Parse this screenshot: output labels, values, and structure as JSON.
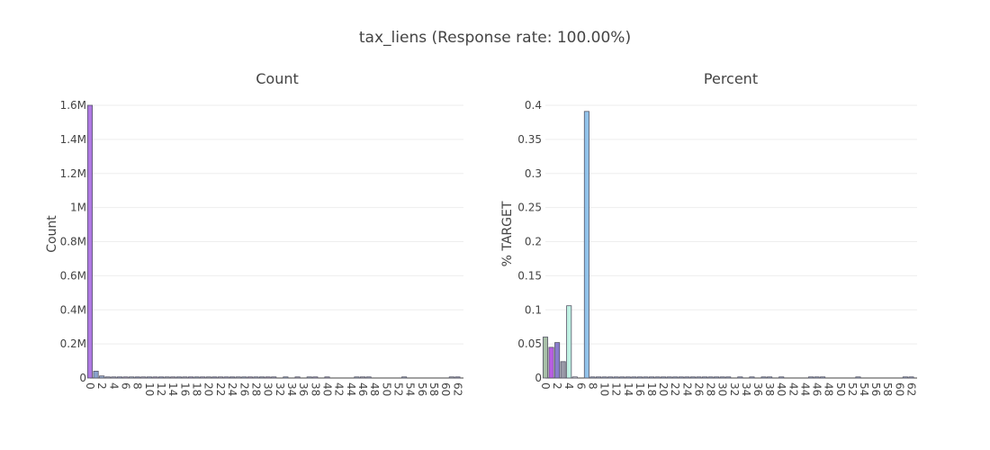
{
  "title": "tax_liens (Response rate: 100.00%)",
  "chart_data": [
    {
      "type": "bar",
      "title": "Count",
      "xlabel": "",
      "ylabel": "Count",
      "ylim": [
        0,
        1600000
      ],
      "yticks": [
        0,
        200000,
        400000,
        600000,
        800000,
        1000000,
        1200000,
        1400000,
        1600000
      ],
      "ytick_labels": [
        "0",
        "0.2M",
        "0.4M",
        "0.6M",
        "0.8M",
        "1M",
        "1.2M",
        "1.4M",
        "1.6M"
      ],
      "xlim": [
        0,
        63
      ],
      "xticks": [
        0,
        2,
        4,
        6,
        8,
        10,
        12,
        14,
        16,
        18,
        20,
        22,
        24,
        26,
        28,
        30,
        32,
        34,
        36,
        38,
        40,
        42,
        44,
        46,
        48,
        50,
        52,
        54,
        56,
        58,
        60,
        62
      ],
      "grid": true,
      "x": [
        0,
        1,
        2,
        3,
        4,
        5,
        6,
        7,
        8,
        9,
        10,
        11,
        12,
        13,
        14,
        15,
        16,
        17,
        18,
        19,
        20,
        21,
        22,
        23,
        24,
        25,
        26,
        27,
        28,
        29,
        30,
        31,
        33,
        35,
        37,
        38,
        40,
        45,
        46,
        47,
        53,
        61,
        62
      ],
      "values": [
        1600000,
        40000,
        12000,
        5500,
        3000,
        1800,
        1100,
        700,
        500,
        350,
        250,
        200,
        150,
        120,
        100,
        80,
        70,
        60,
        50,
        45,
        40,
        35,
        30,
        28,
        25,
        22,
        20,
        18,
        15,
        14,
        12,
        10,
        9,
        8,
        7,
        6,
        5,
        4,
        4,
        3,
        2,
        2,
        1
      ],
      "colors": [
        "#a66ae0",
        "#7d98c8",
        "#8fa3c4",
        "#a6b0c0",
        "#b0b8c8",
        "#9ea8d0",
        "#c0a8c8",
        "#a8c0d0",
        "#90a0c0",
        "#b8b8c8",
        "#a0b0c8",
        "#b0a0c0",
        "#98a8c8",
        "#a8b8c0",
        "#b8a8b8",
        "#a0a8c0",
        "#b0b0c0",
        "#a8a0c8",
        "#98b0c0",
        "#b0a8c8",
        "#a8b0b8",
        "#a0a0c0",
        "#b8b0c0",
        "#a8a8c8",
        "#98a0b8",
        "#b0b8c0",
        "#a0b8c8",
        "#b8a0c0",
        "#a8b0c8",
        "#a0a8b8",
        "#b0a0b8",
        "#a8a8c0",
        "#98b8c8",
        "#b0a8b8",
        "#a0b0b8",
        "#b8a8c8",
        "#a8a0b8",
        "#a0b8c0",
        "#b0b0b8",
        "#a8b8c8",
        "#98a8b8",
        "#b0b8b8",
        "#a0a0b8"
      ]
    },
    {
      "type": "bar",
      "title": "Percent",
      "xlabel": "",
      "ylabel": "% TARGET",
      "ylim": [
        0,
        0.4
      ],
      "yticks": [
        0,
        0.05,
        0.1,
        0.15,
        0.2,
        0.25,
        0.3,
        0.35,
        0.4
      ],
      "ytick_labels": [
        "0",
        "0.05",
        "0.1",
        "0.15",
        "0.2",
        "0.25",
        "0.3",
        "0.35",
        "0.4"
      ],
      "xlim": [
        0,
        63
      ],
      "xticks": [
        0,
        2,
        4,
        6,
        8,
        10,
        12,
        14,
        16,
        18,
        20,
        22,
        24,
        26,
        28,
        30,
        32,
        34,
        36,
        38,
        40,
        42,
        44,
        46,
        48,
        50,
        52,
        54,
        56,
        58,
        60,
        62
      ],
      "grid": true,
      "x": [
        0,
        1,
        2,
        3,
        4,
        5,
        7,
        8,
        9,
        10,
        11,
        12,
        13,
        14,
        15,
        16,
        17,
        18,
        19,
        20,
        21,
        22,
        23,
        24,
        25,
        26,
        27,
        28,
        29,
        30,
        31,
        33,
        35,
        37,
        38,
        40,
        45,
        46,
        47,
        53,
        61,
        62
      ],
      "values": [
        0.06,
        0.045,
        0.052,
        0.024,
        0.106,
        0,
        0.391,
        0,
        0,
        0,
        0,
        0,
        0,
        0,
        0,
        0,
        0,
        0,
        0,
        0,
        0,
        0,
        0,
        0,
        0,
        0,
        0,
        0,
        0,
        0,
        0,
        0,
        0,
        0,
        0,
        0,
        0,
        0,
        0,
        0,
        0,
        0
      ],
      "colors": [
        "#9db89d",
        "#b04ce0",
        "#7d6fc8",
        "#8f8f9f",
        "#b8f0e0",
        "#ffffff",
        "#86bde8",
        "#a0b0c8",
        "#a0b0c8",
        "#a0b0c8",
        "#a0b0c8",
        "#a0b0c8",
        "#a0b0c8",
        "#a0b0c8",
        "#a0b0c8",
        "#a0b0c8",
        "#a0b0c8",
        "#a0b0c8",
        "#a0b0c8",
        "#a0b0c8",
        "#a0b0c8",
        "#a0b0c8",
        "#a0b0c8",
        "#a0b0c8",
        "#a0b0c8",
        "#a0b0c8",
        "#a0b0c8",
        "#a0b0c8",
        "#a0b0c8",
        "#a0b0c8",
        "#a0b0c8",
        "#a0b0c8",
        "#a0b0c8",
        "#a0b0c8",
        "#a0b0c8",
        "#a0b0c8",
        "#a0b0c8",
        "#a0b0c8",
        "#a0b0c8",
        "#a0b0c8",
        "#a0b0c8",
        "#a0b0c8"
      ]
    }
  ]
}
